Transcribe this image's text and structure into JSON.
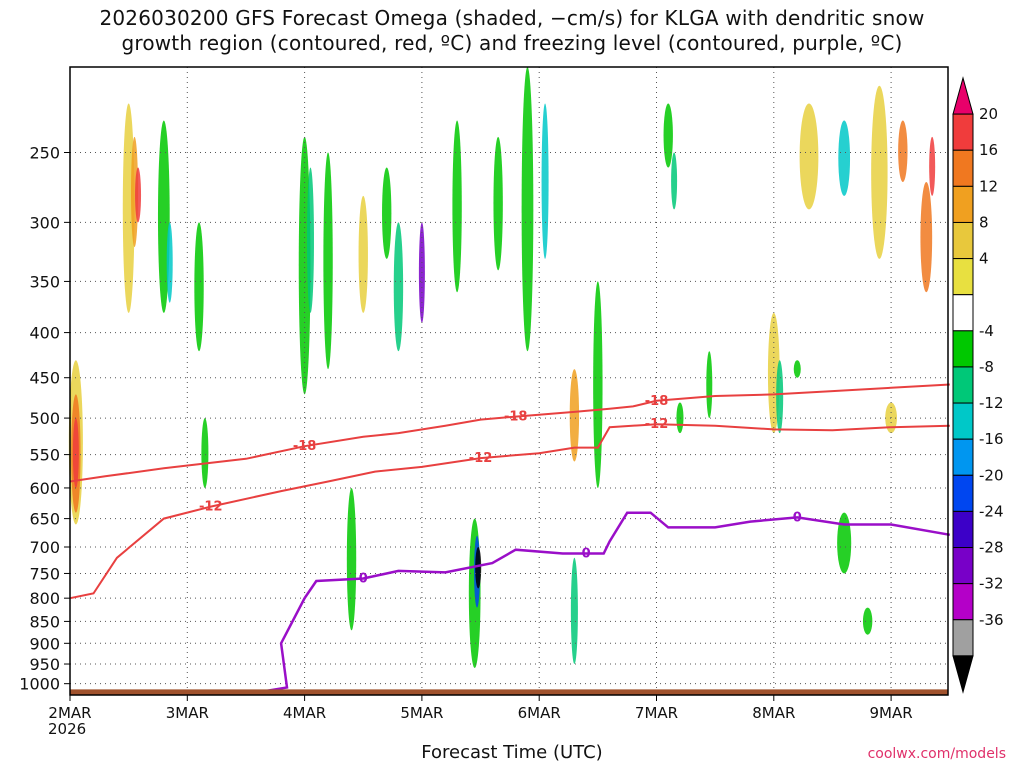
{
  "chart_data": {
    "type": "heatmap",
    "title_line1": "2026030200 GFS Forecast Omega (shaded, −cm/s) for KLGA with dendritic snow",
    "title_line2": "growth region (contoured, red, ºC) and freezing level (contoured, purple, ºC)",
    "xlabel": "Forecast Time (UTC)",
    "x_ticks": [
      "2MAR",
      "3MAR",
      "4MAR",
      "5MAR",
      "6MAR",
      "7MAR",
      "8MAR",
      "9MAR"
    ],
    "x_tick_days": [
      0,
      1,
      2,
      3,
      4,
      5,
      6,
      7
    ],
    "x_range_days": [
      0,
      7.5
    ],
    "start_year": "2026",
    "y_ticks": [
      250,
      300,
      350,
      400,
      450,
      500,
      550,
      600,
      650,
      700,
      750,
      800,
      850,
      900,
      950,
      1000
    ],
    "y_range_hpa": [
      200,
      1030
    ],
    "y_scale": "log",
    "grid": true,
    "colorbar": {
      "labels": [
        20,
        16,
        12,
        8,
        4,
        -4,
        -8,
        -12,
        -16,
        -20,
        -24,
        -28,
        -32,
        -36
      ],
      "colors": [
        "#e8006a",
        "#f03c3c",
        "#f07820",
        "#f0a020",
        "#e8c83c",
        "#e8e040",
        "#ffffff",
        "#00c800",
        "#00c878",
        "#00c8c8",
        "#0096f0",
        "#0046f0",
        "#3c00c8",
        "#7800c8",
        "#b400c8",
        "#a0a0a0",
        "#000000"
      ]
    },
    "contours": {
      "dgz_red": [
        {
          "label": "-18",
          "points": [
            [
              0,
              590
            ],
            [
              0.3,
              582
            ],
            [
              0.8,
              570
            ],
            [
              1.5,
              556
            ],
            [
              2.0,
              538
            ],
            [
              2.5,
              525
            ],
            [
              2.8,
              520
            ],
            [
              3.2,
              510
            ],
            [
              3.5,
              502
            ],
            [
              3.8,
              498
            ],
            [
              4.3,
              492
            ],
            [
              4.6,
              488
            ],
            [
              4.8,
              485
            ],
            [
              5.0,
              478
            ],
            [
              5.5,
              472
            ],
            [
              6.0,
              470
            ],
            [
              6.5,
              466
            ],
            [
              7.0,
              462
            ],
            [
              7.5,
              458
            ]
          ]
        },
        {
          "label": "-12",
          "points": [
            [
              0,
              800
            ],
            [
              0.2,
              790
            ],
            [
              0.4,
              720
            ],
            [
              0.8,
              650
            ],
            [
              1.2,
              630
            ],
            [
              1.8,
              605
            ],
            [
              2.2,
              590
            ],
            [
              2.6,
              575
            ],
            [
              3.0,
              568
            ],
            [
              3.5,
              555
            ],
            [
              4.0,
              548
            ],
            [
              4.3,
              540
            ],
            [
              4.5,
              540
            ],
            [
              4.6,
              512
            ],
            [
              5.0,
              508
            ],
            [
              5.5,
              510
            ],
            [
              6.0,
              515
            ],
            [
              6.5,
              516
            ],
            [
              7.0,
              512
            ],
            [
              7.5,
              510
            ]
          ]
        }
      ],
      "freezing_purple": {
        "label": "0",
        "points": [
          [
            0,
            1020
          ],
          [
            1.0,
            1020
          ],
          [
            1.65,
            1020
          ],
          [
            1.85,
            1010
          ],
          [
            1.8,
            900
          ],
          [
            2.0,
            800
          ],
          [
            2.1,
            765
          ],
          [
            2.5,
            760
          ],
          [
            2.8,
            745
          ],
          [
            3.2,
            748
          ],
          [
            3.6,
            730
          ],
          [
            3.8,
            705
          ],
          [
            4.2,
            712
          ],
          [
            4.4,
            712
          ],
          [
            4.55,
            712
          ],
          [
            4.6,
            690
          ],
          [
            4.75,
            640
          ],
          [
            4.95,
            640
          ],
          [
            5.1,
            665
          ],
          [
            5.5,
            665
          ],
          [
            5.8,
            655
          ],
          [
            6.2,
            648
          ],
          [
            6.6,
            660
          ],
          [
            7.0,
            660
          ],
          [
            7.5,
            678
          ]
        ]
      }
    },
    "contour_labels": {
      "dgz": [
        "-18",
        "-12"
      ],
      "freezing": "0"
    },
    "shading_note_omitted": true
  },
  "credit": "coolwx.com/models",
  "colors": {
    "frame": "#000000",
    "grid": "#555555",
    "ground": "#a0522d",
    "dgz": "#e84040",
    "freezing": "#9a0fc8"
  }
}
